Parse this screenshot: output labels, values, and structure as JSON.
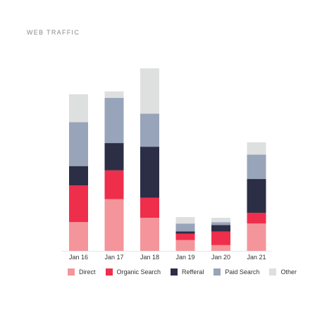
{
  "chart_data": {
    "type": "bar",
    "stacked": true,
    "title": "WEB TRAFFIC",
    "categories": [
      "Jan 16",
      "Jan 17",
      "Jan 18",
      "Jan 19",
      "Jan 20",
      "Jan 21"
    ],
    "series": [
      {
        "name": "Direct",
        "color": "#f4959b",
        "values": [
          40,
          72,
          46,
          15,
          8,
          38
        ]
      },
      {
        "name": "Organic Search",
        "color": "#ef2e4c",
        "values": [
          51,
          40,
          28,
          9,
          19,
          15
        ]
      },
      {
        "name": "Refferal",
        "color": "#2b2e45",
        "values": [
          27,
          38,
          71,
          3,
          9,
          47
        ]
      },
      {
        "name": "Paid Search",
        "color": "#98a4b9",
        "values": [
          61,
          63,
          46,
          11,
          4,
          34
        ]
      },
      {
        "name": "Other",
        "color": "#dedfdf",
        "values": [
          39,
          9,
          63,
          9,
          6,
          17
        ]
      }
    ],
    "ylim": [
      0,
      255
    ],
    "grid": false,
    "legend_position": "bottom"
  }
}
